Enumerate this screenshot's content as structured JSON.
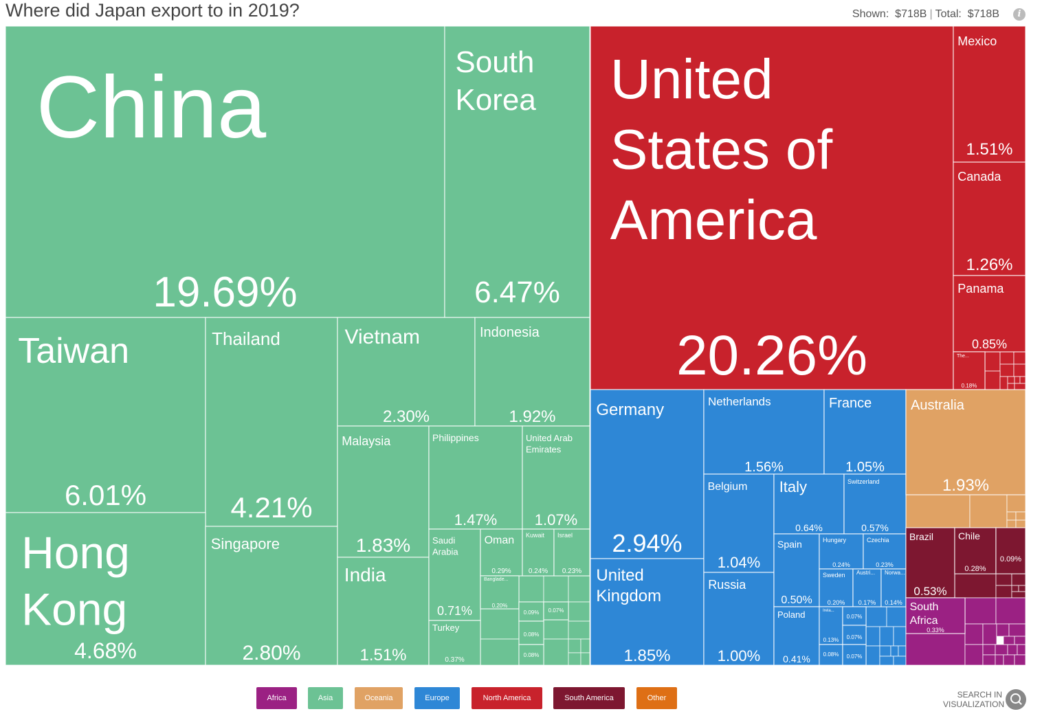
{
  "header": {
    "title": "Where did Japan export to in 2019?",
    "shown_label": "Shown:",
    "shown_value": "$718B",
    "total_label": "Total:",
    "total_value": "$718B",
    "info_icon": "info-icon"
  },
  "colors": {
    "Africa": "#9b2183",
    "Asia": "#6cc294",
    "Oceania": "#e0a264",
    "Europe": "#2e87d6",
    "North America": "#c8222c",
    "South America": "#7d1730",
    "Other": "#de6f15"
  },
  "chart_data": {
    "type": "treemap",
    "title": "Where did Japan export to in 2019?",
    "unit": "% of total exports",
    "items": [
      {
        "name": "China",
        "region": "Asia",
        "value": 19.69,
        "label": "19.69%"
      },
      {
        "name": "South Korea",
        "region": "Asia",
        "value": 6.47,
        "label": "6.47%"
      },
      {
        "name": "Taiwan",
        "region": "Asia",
        "value": 6.01,
        "label": "6.01%"
      },
      {
        "name": "Thailand",
        "region": "Asia",
        "value": 4.21,
        "label": "4.21%"
      },
      {
        "name": "Vietnam",
        "region": "Asia",
        "value": 2.3,
        "label": "2.30%"
      },
      {
        "name": "Indonesia",
        "region": "Asia",
        "value": 1.92,
        "label": "1.92%"
      },
      {
        "name": "Hong Kong",
        "region": "Asia",
        "value": 4.68,
        "label": "4.68%"
      },
      {
        "name": "Singapore",
        "region": "Asia",
        "value": 2.8,
        "label": "2.80%"
      },
      {
        "name": "Malaysia",
        "region": "Asia",
        "value": 1.83,
        "label": "1.83%"
      },
      {
        "name": "Philippines",
        "region": "Asia",
        "value": 1.47,
        "label": "1.47%"
      },
      {
        "name": "United Arab Emirates",
        "region": "Asia",
        "value": 1.07,
        "label": "1.07%"
      },
      {
        "name": "India",
        "region": "Asia",
        "value": 1.51,
        "label": "1.51%"
      },
      {
        "name": "Saudi Arabia",
        "region": "Asia",
        "value": 0.71,
        "label": "0.71%"
      },
      {
        "name": "Oman",
        "region": "Asia",
        "value": 0.29,
        "label": "0.29%"
      },
      {
        "name": "Kuwait",
        "region": "Asia",
        "value": 0.24,
        "label": "0.24%"
      },
      {
        "name": "Israel",
        "region": "Asia",
        "value": 0.23,
        "label": "0.23%"
      },
      {
        "name": "Turkey",
        "region": "Asia",
        "value": 0.37,
        "label": "0.37%"
      },
      {
        "name": "Banglade...",
        "region": "Asia",
        "value": 0.2,
        "label": "0.20%"
      },
      {
        "name": "",
        "region": "Asia",
        "value": 0.09,
        "label": "0.09%"
      },
      {
        "name": "",
        "region": "Asia",
        "value": 0.07,
        "label": "0.07%"
      },
      {
        "name": "",
        "region": "Asia",
        "value": 0.08,
        "label": "0.08%"
      },
      {
        "name": "",
        "region": "Asia",
        "value": 0.08,
        "label": "0.08%"
      },
      {
        "name": "United States of America",
        "region": "North America",
        "value": 20.26,
        "label": "20.26%"
      },
      {
        "name": "Mexico",
        "region": "North America",
        "value": 1.51,
        "label": "1.51%"
      },
      {
        "name": "Canada",
        "region": "North America",
        "value": 1.26,
        "label": "1.26%"
      },
      {
        "name": "Panama",
        "region": "North America",
        "value": 0.85,
        "label": "0.85%"
      },
      {
        "name": "The...",
        "region": "North America",
        "value": 0.18,
        "label": "0.18%"
      },
      {
        "name": "Germany",
        "region": "Europe",
        "value": 2.94,
        "label": "2.94%"
      },
      {
        "name": "Netherlands",
        "region": "Europe",
        "value": 1.56,
        "label": "1.56%"
      },
      {
        "name": "France",
        "region": "Europe",
        "value": 1.05,
        "label": "1.05%"
      },
      {
        "name": "United Kingdom",
        "region": "Europe",
        "value": 1.85,
        "label": "1.85%"
      },
      {
        "name": "Belgium",
        "region": "Europe",
        "value": 1.04,
        "label": "1.04%"
      },
      {
        "name": "Italy",
        "region": "Europe",
        "value": 0.64,
        "label": "0.64%"
      },
      {
        "name": "Switzerland",
        "region": "Europe",
        "value": 0.57,
        "label": "0.57%"
      },
      {
        "name": "Russia",
        "region": "Europe",
        "value": 1.0,
        "label": "1.00%"
      },
      {
        "name": "Spain",
        "region": "Europe",
        "value": 0.5,
        "label": "0.50%"
      },
      {
        "name": "Hungary",
        "region": "Europe",
        "value": 0.24,
        "label": "0.24%"
      },
      {
        "name": "Czechia",
        "region": "Europe",
        "value": 0.23,
        "label": "0.23%"
      },
      {
        "name": "Sweden",
        "region": "Europe",
        "value": 0.2,
        "label": "0.20%"
      },
      {
        "name": "Austri...",
        "region": "Europe",
        "value": 0.17,
        "label": "0.17%"
      },
      {
        "name": "Norwa...",
        "region": "Europe",
        "value": 0.14,
        "label": "0.14%"
      },
      {
        "name": "Poland",
        "region": "Europe",
        "value": 0.41,
        "label": "0.41%"
      },
      {
        "name": "Irela...",
        "region": "Europe",
        "value": 0.13,
        "label": "0.13%"
      },
      {
        "name": "",
        "region": "Europe",
        "value": 0.08,
        "label": "0.08%"
      },
      {
        "name": "",
        "region": "Europe",
        "value": 0.07,
        "label": "0.07%"
      },
      {
        "name": "",
        "region": "Europe",
        "value": 0.07,
        "label": "0.07%"
      },
      {
        "name": "",
        "region": "Europe",
        "value": 0.07,
        "label": "0.07%"
      },
      {
        "name": "Australia",
        "region": "Oceania",
        "value": 1.93,
        "label": "1.93%"
      },
      {
        "name": "Brazil",
        "region": "South America",
        "value": 0.53,
        "label": "0.53%"
      },
      {
        "name": "Chile",
        "region": "South America",
        "value": 0.28,
        "label": "0.28%"
      },
      {
        "name": "",
        "region": "South America",
        "value": 0.09,
        "label": "0.09%"
      },
      {
        "name": "South Africa",
        "region": "Africa",
        "value": 0.33,
        "label": "0.33%"
      }
    ],
    "legend": [
      "Africa",
      "Asia",
      "Oceania",
      "Europe",
      "North America",
      "South America",
      "Other"
    ]
  },
  "search": {
    "label_line1": "SEARCH IN",
    "label_line2": "VISUALIZATION"
  }
}
